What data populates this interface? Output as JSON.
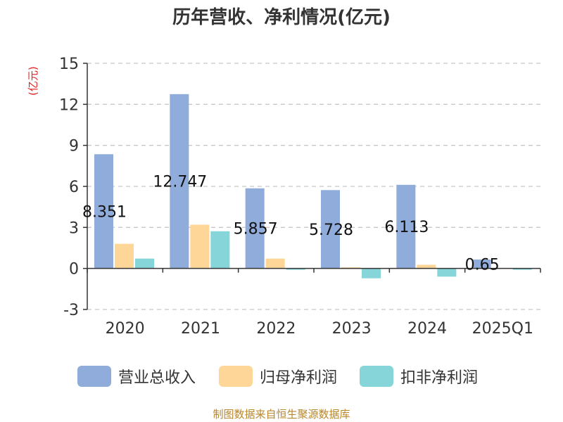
{
  "title": "历年营收、净利情况(亿元)",
  "source": "制图数据来自恒生聚源数据库",
  "chart_data": {
    "type": "bar",
    "title": "历年营收、净利情况(亿元)",
    "ylabel": "(亿元)",
    "xlabel": "",
    "categories": [
      "2020",
      "2021",
      "2022",
      "2023",
      "2024",
      "2025Q1"
    ],
    "ylim": [
      -3,
      15
    ],
    "yticks": [
      -3,
      0,
      3,
      6,
      9,
      12,
      15
    ],
    "grid": true,
    "legend_position": "bottom",
    "series": [
      {
        "name": "营业总收入",
        "color": "#8facda",
        "values": [
          8.351,
          12.747,
          5.857,
          5.728,
          6.113,
          0.65
        ],
        "labels": [
          "8.351",
          "12.747",
          "5.857",
          "5.728",
          "6.113",
          "0.65"
        ]
      },
      {
        "name": "归母净利润",
        "color": "#fdd698",
        "values": [
          1.8,
          3.2,
          0.72,
          0.08,
          0.27,
          0.02
        ]
      },
      {
        "name": "扣非净利润",
        "color": "#86d5d8",
        "values": [
          0.72,
          2.72,
          -0.1,
          -0.72,
          -0.6,
          -0.1
        ]
      }
    ]
  }
}
